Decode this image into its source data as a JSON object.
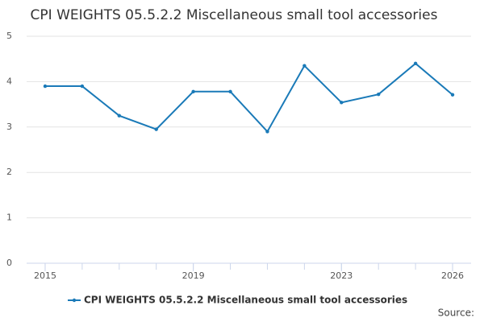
{
  "chart_data": {
    "type": "line",
    "title": "CPI WEIGHTS 05.5.2.2 Miscellaneous small tool accessories",
    "x": [
      2015,
      2016,
      2017,
      2018,
      2019,
      2020,
      2021,
      2022,
      2023,
      2024,
      2025,
      2026
    ],
    "series": [
      {
        "name": "CPI WEIGHTS 05.5.2.2 Miscellaneous small tool accessories",
        "color": "#1a7ab8",
        "values": [
          3.9,
          3.9,
          3.25,
          2.95,
          3.78,
          3.78,
          2.9,
          4.35,
          3.54,
          3.72,
          4.4,
          3.71
        ]
      }
    ],
    "xlim": [
      2014.5,
      2026.5
    ],
    "xticks": [
      2015,
      2019,
      2023,
      2026
    ],
    "ylim": [
      0,
      5
    ],
    "yticks": [
      0,
      1,
      2,
      3,
      4,
      5
    ],
    "grid": true,
    "source": "Source:"
  }
}
